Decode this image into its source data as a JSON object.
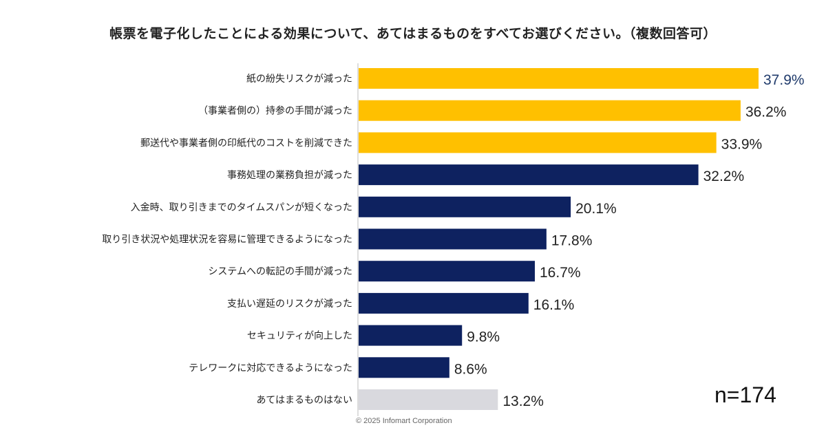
{
  "chart_data": {
    "type": "bar",
    "orientation": "horizontal",
    "title": "帳票を電子化したことによる効果について、あてはまるものをすべてお選びください。（複数回答可）",
    "categories": [
      "紙の紛失リスクが減った",
      "（事業者側の）持参の手間が減った",
      "郵送代や事業者側の印紙代のコストを削減できた",
      "事務処理の業務負担が減った",
      "入金時、取り引きまでのタイムスパンが短くなった",
      "取り引き状況や処理状況を容易に管理できるようになった",
      "システムへの転記の手間が減った",
      "支払い遅延のリスクが減った",
      "セキュリティが向上した",
      "テレワークに対応できるようになった",
      "あてはまるものはない"
    ],
    "values": [
      37.9,
      36.2,
      33.9,
      32.2,
      20.1,
      17.8,
      16.7,
      16.1,
      9.8,
      8.6,
      13.2
    ],
    "value_labels": [
      "37.9%",
      "36.2%",
      "33.9%",
      "32.2%",
      "20.1%",
      "17.8%",
      "16.7%",
      "16.1%",
      "9.8%",
      "8.6%",
      "13.2%"
    ],
    "bar_colors": [
      "#FFC000",
      "#FFC000",
      "#FFC000",
      "#0E2260",
      "#0E2260",
      "#0E2260",
      "#0E2260",
      "#0E2260",
      "#0E2260",
      "#0E2260",
      "#D9D9DE"
    ],
    "first_label_color": "#1F3A6B",
    "xlim": [
      0,
      40
    ],
    "grid": false,
    "annotation": "n=174"
  },
  "footer": {
    "copyright": "© 2025 Infomart Corporation"
  }
}
